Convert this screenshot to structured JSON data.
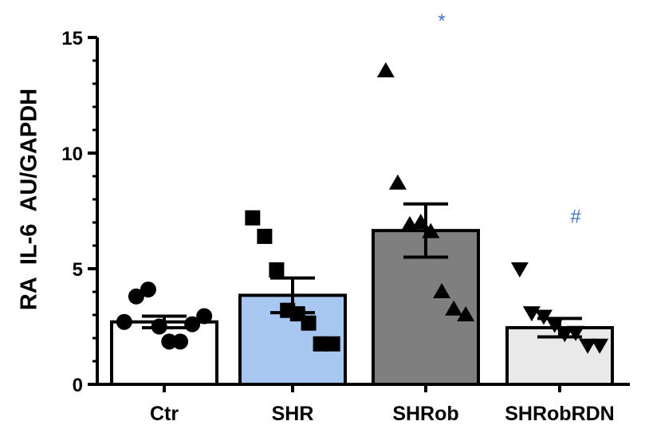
{
  "chart_data": {
    "type": "bar",
    "title": "",
    "xlabel": "",
    "ylabel": "RA  IL-6  AU/GAPDH",
    "ylim": [
      0,
      15
    ],
    "yticks": [
      0,
      5,
      10,
      15
    ],
    "categories": [
      "Ctr",
      "SHR",
      "SHRob",
      "SHRobRDN"
    ],
    "bar_colors": [
      "#ffffff",
      "#a7c7f0",
      "#7f7f7f",
      "#e9e9e9"
    ],
    "marker_shapes": [
      "circle",
      "square",
      "triangle-up",
      "triangle-down"
    ],
    "means": [
      2.7,
      3.85,
      6.65,
      2.45
    ],
    "sem": [
      0.25,
      0.75,
      1.15,
      0.4
    ],
    "points": [
      [
        2.7,
        3.8,
        4.1,
        2.5,
        1.85,
        1.85,
        2.6,
        2.95
      ],
      [
        7.2,
        6.4,
        4.95,
        3.2,
        3.05,
        2.65,
        1.75,
        1.75
      ],
      [
        13.55,
        8.7,
        6.9,
        7.0,
        6.6,
        4.0,
        3.25,
        3.0
      ],
      [
        5.0,
        3.1,
        2.95,
        2.6,
        2.2,
        2.25,
        1.7,
        1.7
      ]
    ],
    "annotations": [
      {
        "category": "SHRob",
        "text": "*",
        "color": "#4472c4"
      },
      {
        "category": "SHRobRDN",
        "text": "#",
        "color": "#4472c4"
      }
    ]
  }
}
